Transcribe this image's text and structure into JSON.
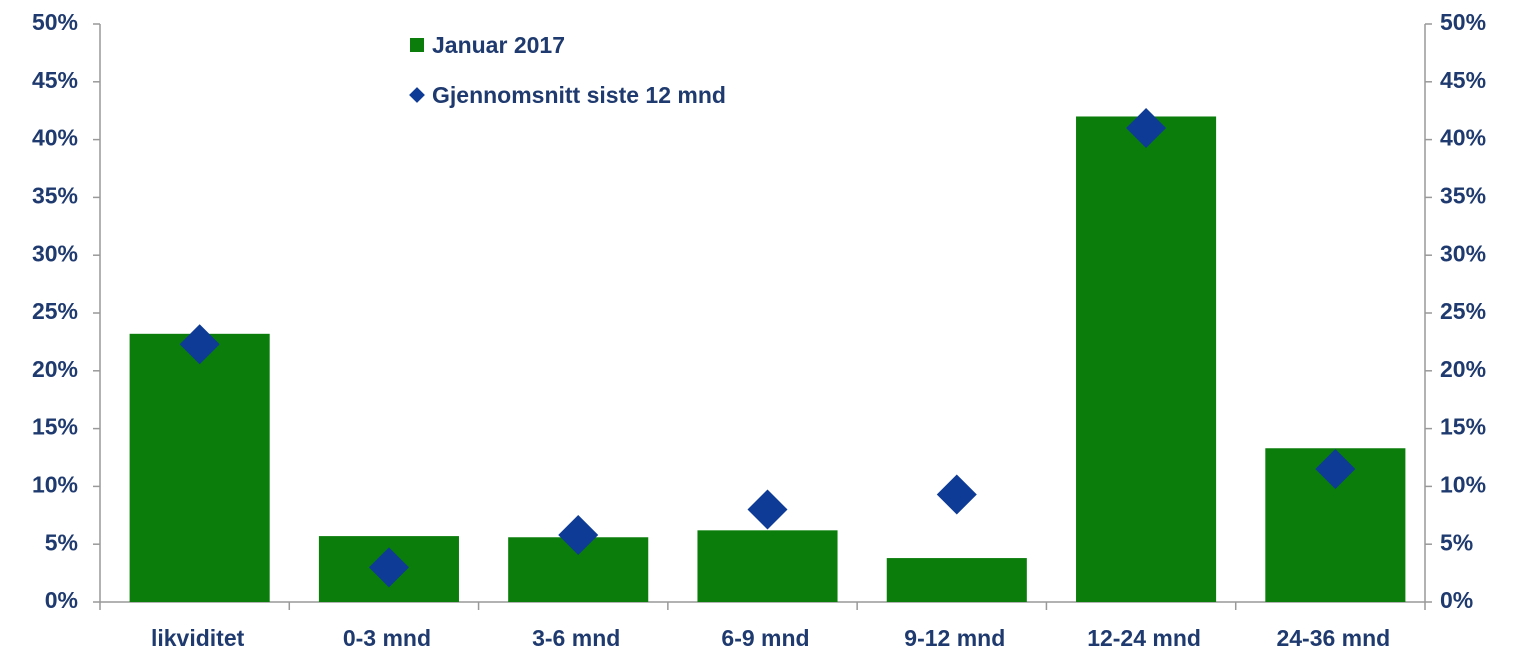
{
  "chart_data": {
    "type": "bar",
    "categories": [
      "likviditet",
      "0-3 mnd",
      "3-6 mnd",
      "6-9 mnd",
      "9-12 mnd",
      "12-24 mnd",
      "24-36 mnd"
    ],
    "series": [
      {
        "name": "Januar 2017",
        "type": "bar",
        "color": "#0a7d0a",
        "values": [
          23.2,
          5.7,
          5.6,
          6.2,
          3.8,
          42,
          13.3
        ]
      },
      {
        "name": "Gjennomsnitt siste 12 mnd",
        "type": "scatter",
        "axis": "y2",
        "color": "#0e3b96",
        "values": [
          22.3,
          3.0,
          5.8,
          8.0,
          9.3,
          41.0,
          11.5
        ]
      }
    ],
    "ylim": [
      0,
      50
    ],
    "yticks": [
      {
        "value": 0,
        "label": "0%"
      },
      {
        "value": 5,
        "label": "5%"
      },
      {
        "value": 10,
        "label": "10%"
      },
      {
        "value": 15,
        "label": "15%"
      },
      {
        "value": 20,
        "label": "20%"
      },
      {
        "value": 25,
        "label": "25%"
      },
      {
        "value": 30,
        "label": "30%"
      },
      {
        "value": 35,
        "label": "35%"
      },
      {
        "value": 40,
        "label": "40%"
      },
      {
        "value": 45,
        "label": "45%"
      },
      {
        "value": 50,
        "label": "50%"
      }
    ],
    "y2lim": [
      0,
      50
    ],
    "y2ticks": [
      {
        "value": 0,
        "label": "0%"
      },
      {
        "value": 5,
        "label": "5%"
      },
      {
        "value": 10,
        "label": "10%"
      },
      {
        "value": 15,
        "label": "15%"
      },
      {
        "value": 20,
        "label": "20%"
      },
      {
        "value": 25,
        "label": "25%"
      },
      {
        "value": 30,
        "label": "30%"
      },
      {
        "value": 35,
        "label": "35%"
      },
      {
        "value": 40,
        "label": "40%"
      },
      {
        "value": 45,
        "label": "45%"
      },
      {
        "value": 50,
        "label": "50%"
      }
    ],
    "grid": false,
    "legend": "upper center"
  }
}
